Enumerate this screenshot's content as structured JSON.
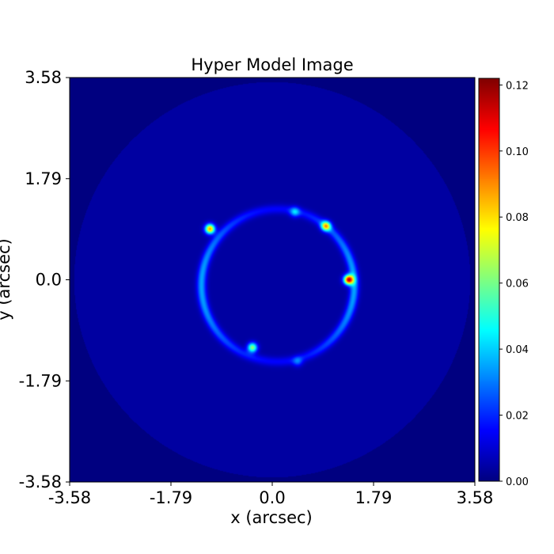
{
  "chart_data": {
    "type": "heatmap",
    "title": "Hyper Model Image",
    "xlabel": "x (arcsec)",
    "ylabel": "y (arcsec)",
    "xlim": [
      -3.58,
      3.58
    ],
    "ylim": [
      -3.58,
      3.58
    ],
    "x_ticks": [
      "-3.58",
      "-1.79",
      "0.0",
      "1.79",
      "3.58"
    ],
    "y_ticks": [
      "3.58",
      "1.79",
      "0.0",
      "-1.79",
      "-3.58"
    ],
    "x_tick_values": [
      -3.58,
      -1.79,
      0.0,
      1.79,
      3.58
    ],
    "y_tick_values": [
      3.58,
      1.79,
      0.0,
      -1.79,
      -3.58
    ],
    "colormap": "jet",
    "colorbar": {
      "range": [
        0.0,
        0.122
      ],
      "tick_labels": [
        "0.12",
        "0.10",
        "0.08",
        "0.06",
        "0.04",
        "0.02",
        "0.00"
      ],
      "tick_values": [
        0.12,
        0.1,
        0.08,
        0.06,
        0.04,
        0.02,
        0.0
      ]
    },
    "background_value": 0.004,
    "mask_radius_arcsec": 3.5,
    "ring": {
      "center": [
        0.1,
        -0.1
      ],
      "radius_arcsec": 1.35,
      "base_value": 0.028
    },
    "bright_spots": [
      {
        "x": 1.35,
        "y": 0.0,
        "value": 0.12
      },
      {
        "x": -1.1,
        "y": 0.9,
        "value": 0.1
      },
      {
        "x": 0.95,
        "y": 0.95,
        "value": 0.085
      },
      {
        "x": -0.35,
        "y": -1.2,
        "value": 0.075
      },
      {
        "x": 0.4,
        "y": 1.2,
        "value": 0.045
      },
      {
        "x": 0.45,
        "y": -1.45,
        "value": 0.035
      }
    ],
    "grid": false,
    "legend": "none"
  },
  "colors": {
    "background": "#ffffff",
    "heatmap_low": "#000080",
    "heatmap_high": "#800000"
  }
}
